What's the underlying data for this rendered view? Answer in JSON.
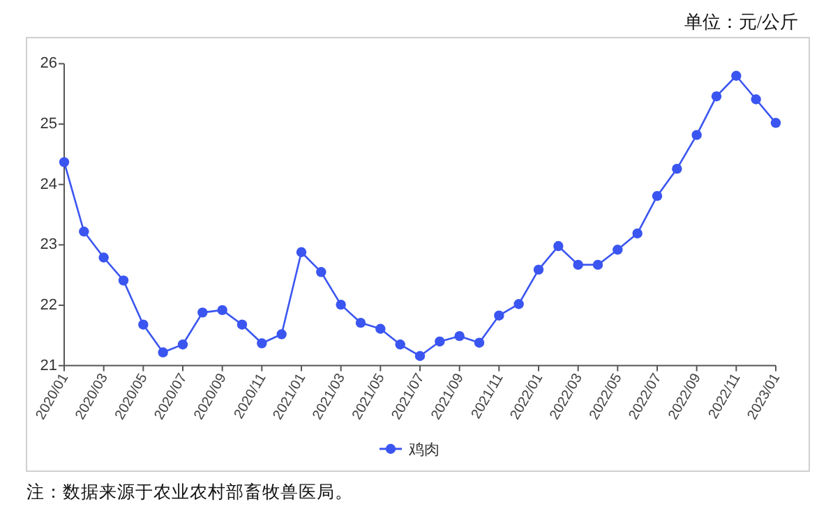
{
  "chart_data": {
    "type": "line",
    "annotations": [
      "单位：元/公斤",
      "注：数据来源于农业农村部畜牧兽医局。"
    ],
    "categories": [
      "2020/01",
      null,
      "2020/03",
      null,
      "2020/05",
      null,
      "2020/07",
      null,
      "2020/09",
      null,
      "2020/11",
      null,
      "2021/01",
      null,
      "2021/03",
      null,
      "2021/05",
      null,
      "2021/07",
      null,
      "2021/09",
      null,
      "2021/11",
      null,
      "2022/01",
      null,
      "2022/03",
      null,
      "2022/05",
      null,
      "2022/07",
      null,
      "2022/09",
      null,
      "2022/11",
      null,
      "2023/01"
    ],
    "series": [
      {
        "name": "鸡肉",
        "color": "#3a55f0",
        "values": [
          24.37,
          23.22,
          22.79,
          22.41,
          21.68,
          21.22,
          21.35,
          21.88,
          21.92,
          21.68,
          21.37,
          21.52,
          22.88,
          22.55,
          22.01,
          21.71,
          21.61,
          21.35,
          21.16,
          21.4,
          21.49,
          21.38,
          21.83,
          22.02,
          22.59,
          22.98,
          22.67,
          22.67,
          22.92,
          23.19,
          23.81,
          24.26,
          24.82,
          25.46,
          25.8,
          25.41,
          25.02
        ]
      }
    ],
    "ylim": [
      21,
      26
    ],
    "yticks": [
      21,
      22,
      23,
      24,
      25,
      26
    ],
    "legend": "bottom",
    "marker": "circle",
    "line_style": "solid"
  }
}
